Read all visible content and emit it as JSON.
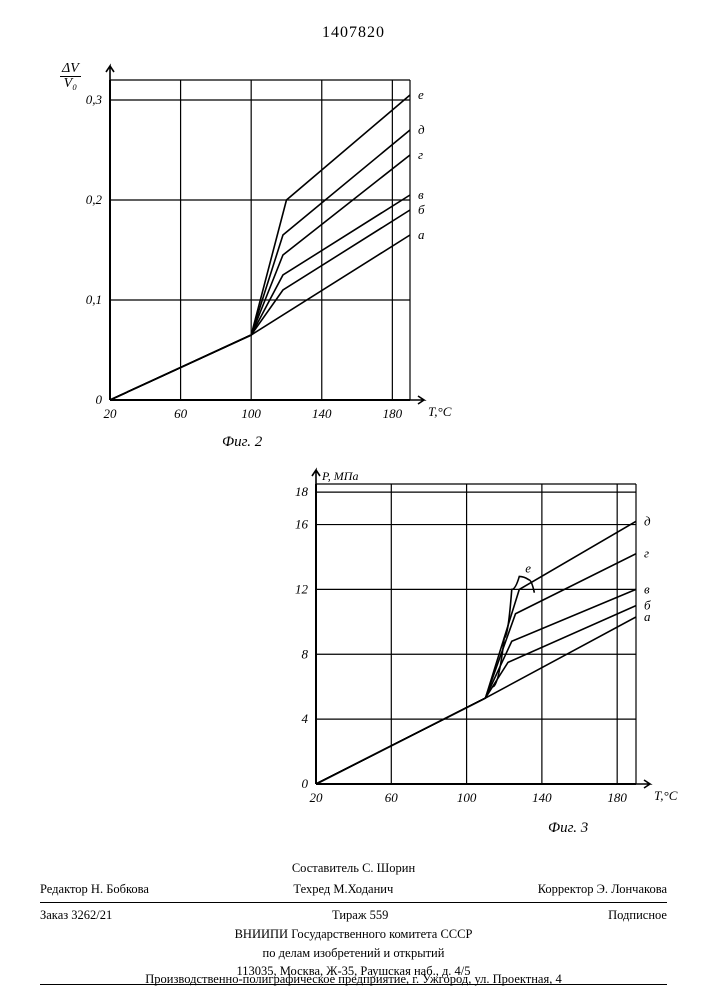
{
  "document": {
    "number": "1407820"
  },
  "fig2": {
    "caption": "Фиг. 2",
    "y_axis": {
      "numerator": "ΔV",
      "denominator": "V₀",
      "ticks": [
        0,
        0.1,
        0.2,
        0.3
      ],
      "tick_labels": [
        "0",
        "0,1",
        "0,2",
        "0,3"
      ]
    },
    "x_axis": {
      "ticks": [
        20,
        60,
        100,
        140,
        180
      ],
      "label": "T,°С"
    },
    "background_color": "#ffffff",
    "axis_color": "#000000",
    "grid_color": "#000000",
    "stroke_width_axis": 2.0,
    "stroke_width_grid": 1.2,
    "stroke_width_series": 1.6,
    "xlim": [
      20,
      190
    ],
    "ylim": [
      0,
      0.32
    ],
    "series": [
      {
        "label": "е",
        "points": [
          [
            20,
            0
          ],
          [
            100,
            0.065
          ],
          [
            120,
            0.2
          ],
          [
            190,
            0.305
          ]
        ]
      },
      {
        "label": "д",
        "points": [
          [
            20,
            0
          ],
          [
            100,
            0.065
          ],
          [
            118,
            0.165
          ],
          [
            190,
            0.27
          ]
        ]
      },
      {
        "label": "г",
        "points": [
          [
            20,
            0
          ],
          [
            100,
            0.065
          ],
          [
            118,
            0.145
          ],
          [
            190,
            0.245
          ]
        ]
      },
      {
        "label": "в",
        "points": [
          [
            20,
            0
          ],
          [
            100,
            0.065
          ],
          [
            118,
            0.125
          ],
          [
            190,
            0.205
          ]
        ]
      },
      {
        "label": "б",
        "points": [
          [
            20,
            0
          ],
          [
            100,
            0.065
          ],
          [
            118,
            0.11
          ],
          [
            190,
            0.19
          ]
        ]
      },
      {
        "label": "а",
        "points": [
          [
            20,
            0
          ],
          [
            100,
            0.065
          ],
          [
            190,
            0.165
          ]
        ]
      }
    ]
  },
  "fig3": {
    "caption": "Фиг. 3",
    "y_axis": {
      "title": "P, МПа",
      "ticks": [
        0,
        4,
        8,
        12,
        16,
        18
      ],
      "tick_labels": [
        "0",
        "4",
        "8",
        "12",
        "16",
        "18"
      ]
    },
    "x_axis": {
      "ticks": [
        20,
        60,
        100,
        140,
        180
      ],
      "label": "T,°С"
    },
    "background_color": "#ffffff",
    "axis_color": "#000000",
    "grid_color": "#000000",
    "stroke_width_axis": 2.0,
    "stroke_width_grid": 1.2,
    "stroke_width_series": 1.6,
    "xlim": [
      20,
      190
    ],
    "ylim": [
      0,
      18.5
    ],
    "series": [
      {
        "label": "д",
        "points": [
          [
            20,
            0
          ],
          [
            110,
            5.3
          ],
          [
            128,
            12.0
          ],
          [
            190,
            16.2
          ]
        ]
      },
      {
        "label": "г",
        "points": [
          [
            20,
            0
          ],
          [
            110,
            5.3
          ],
          [
            126,
            10.5
          ],
          [
            190,
            14.2
          ]
        ]
      },
      {
        "label": "в",
        "points": [
          [
            20,
            0
          ],
          [
            110,
            5.3
          ],
          [
            124,
            8.8
          ],
          [
            190,
            12.0
          ]
        ]
      },
      {
        "label": "б",
        "points": [
          [
            20,
            0
          ],
          [
            110,
            5.3
          ],
          [
            122,
            7.5
          ],
          [
            190,
            11.0
          ]
        ]
      },
      {
        "label": "а",
        "points": [
          [
            20,
            0
          ],
          [
            110,
            5.3
          ],
          [
            190,
            10.3
          ]
        ]
      }
    ],
    "curve_e": {
      "label": "е",
      "points": [
        [
          114,
          6.0
        ],
        [
          120,
          9.0
        ],
        [
          124,
          12.0
        ],
        [
          128,
          12.8
        ],
        [
          133,
          12.6
        ],
        [
          136,
          11.8
        ]
      ]
    }
  },
  "footer": {
    "compiler_label": "Составитель",
    "compiler_name": "С. Шорин",
    "editor_label": "Редактор",
    "editor_name": "Н. Бобкова",
    "techred_label": "Техред",
    "techred_name": "М.Ходанич",
    "corrector_label": "Корректор",
    "corrector_name": "Э. Лончакова",
    "order": "Заказ 3262/21",
    "tirazh": "Тираж 559",
    "subscription": "Подписное",
    "org1": "ВНИИПИ Государственного комитета СССР",
    "org2": "по делам изобретений и открытий",
    "address": "113035, Москва, Ж-35, Раушская наб., д. 4/5",
    "printer": "Производственно-полиграфическое предприятие, г. Ужгород, ул. Проектная, 4"
  }
}
